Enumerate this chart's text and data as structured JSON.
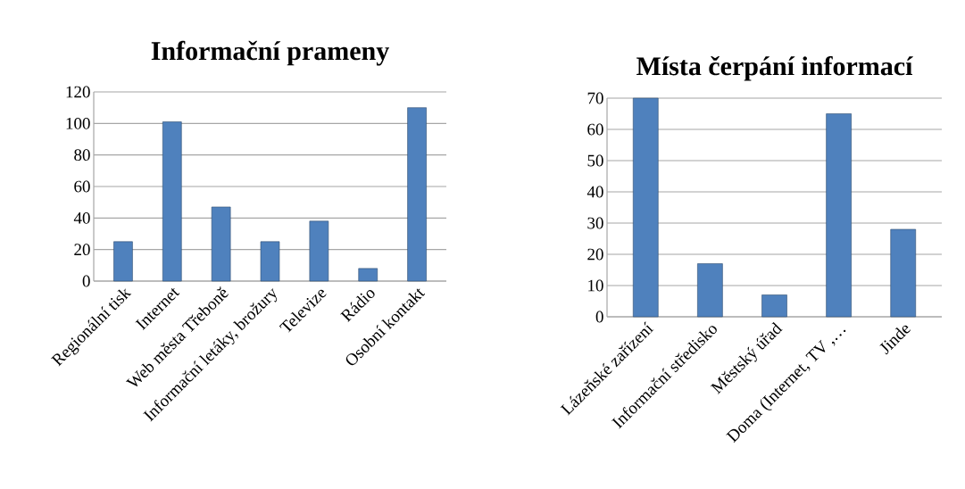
{
  "chart_data": [
    {
      "type": "bar",
      "title": "Informační prameny",
      "categories": [
        "Regionální tisk",
        "Internet",
        "Web města Třeboně",
        "Informační letáky, brožury",
        "Televize",
        "Rádio",
        "Osobní kontakt"
      ],
      "values": [
        25,
        101,
        47,
        25,
        38,
        8,
        110
      ],
      "color": "#4f81bd",
      "ylim": [
        0,
        120
      ],
      "yticks": [
        0,
        20,
        40,
        60,
        80,
        100,
        120
      ],
      "grid": "y"
    },
    {
      "type": "bar",
      "title": "Místa čerpání informací",
      "categories": [
        "Lázeňské zařízení",
        "Informační středisko",
        "Městský úřad",
        "Doma (Internet, TV ,…",
        "Jinde"
      ],
      "values": [
        70,
        17,
        7,
        65,
        28
      ],
      "color": "#4f81bd",
      "ylim": [
        0,
        70
      ],
      "yticks": [
        0,
        10,
        20,
        30,
        40,
        50,
        60,
        70
      ],
      "grid": "y"
    }
  ]
}
